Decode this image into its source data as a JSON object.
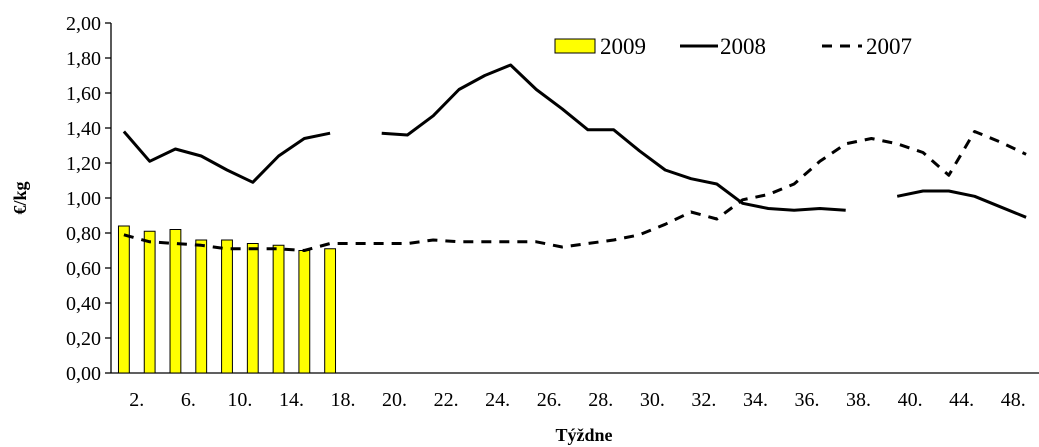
{
  "chart_data": {
    "type": "bar+line",
    "title": "",
    "xlabel": "Týždne",
    "ylabel": "€/kg",
    "ylim": [
      0,
      2
    ],
    "yticks": [
      "0,00",
      "0,20",
      "0,40",
      "0,60",
      "0,80",
      "1,00",
      "1,20",
      "1,40",
      "1,60",
      "1,80",
      "2,00"
    ],
    "xticks": [
      "2.",
      "6.",
      "10.",
      "14.",
      "18.",
      "20.",
      "22.",
      "24.",
      "26.",
      "28.",
      "30.",
      "32.",
      "34.",
      "36.",
      "38.",
      "40.",
      "44.",
      "48."
    ],
    "grid": false,
    "legend_position": "top-right",
    "series": [
      {
        "name": "2009",
        "style": "bar",
        "color": "#ffff00",
        "values": [
          0.84,
          0.81,
          0.82,
          0.76,
          0.76,
          0.74,
          0.73,
          0.7,
          0.71
        ]
      },
      {
        "name": "2008",
        "style": "solid-line",
        "color": "#000000",
        "values": [
          1.38,
          1.21,
          1.28,
          1.24,
          1.16,
          1.09,
          1.24,
          1.34,
          1.37,
          null,
          1.37,
          1.36,
          1.47,
          1.62,
          1.7,
          1.76,
          1.62,
          1.51,
          1.39,
          1.39,
          1.27,
          1.16,
          1.11,
          1.08,
          0.97,
          0.94,
          0.93,
          0.94,
          0.93,
          null,
          1.01,
          1.04,
          1.04,
          1.01,
          0.95,
          0.89
        ]
      },
      {
        "name": "2007",
        "style": "dashed-line",
        "color": "#000000",
        "values": [
          0.79,
          0.75,
          0.74,
          0.73,
          0.71,
          0.71,
          0.71,
          0.7,
          0.74,
          0.74,
          0.74,
          0.74,
          0.76,
          0.75,
          0.75,
          0.75,
          0.75,
          0.72,
          0.74,
          0.76,
          0.79,
          0.85,
          0.92,
          0.88,
          0.99,
          1.02,
          1.08,
          1.21,
          1.31,
          1.34,
          1.31,
          1.26,
          1.13,
          1.38,
          1.32,
          1.25
        ]
      }
    ]
  }
}
